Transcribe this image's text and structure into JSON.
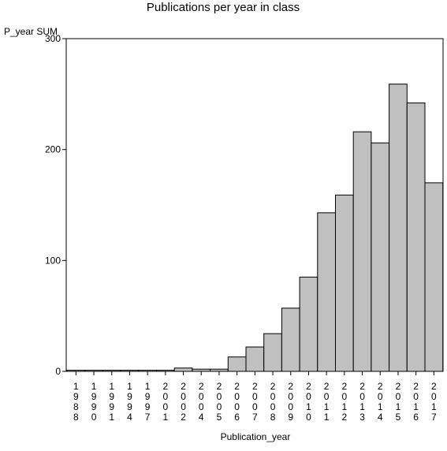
{
  "chart_data": {
    "type": "bar",
    "title": "Publications per year in class",
    "ylabel": "P_year SUM",
    "xlabel": "Publication_year",
    "categories": [
      "1988",
      "1990",
      "1991",
      "1994",
      "1997",
      "2001",
      "2002",
      "2004",
      "2005",
      "2006",
      "2007",
      "2008",
      "2009",
      "2010",
      "2011",
      "2012",
      "2013",
      "2014",
      "2015",
      "2016",
      "2017"
    ],
    "values": [
      1,
      1,
      1,
      1,
      1,
      1,
      3,
      2,
      2,
      13,
      22,
      34,
      57,
      85,
      143,
      159,
      216,
      206,
      259,
      242,
      170
    ],
    "ylim": [
      0,
      300
    ],
    "yticks": [
      0,
      100,
      200,
      300
    ],
    "grid": false,
    "bar_color": "#c0c0c0",
    "bar_edge_color": "#000000",
    "background": "#ffffff"
  }
}
